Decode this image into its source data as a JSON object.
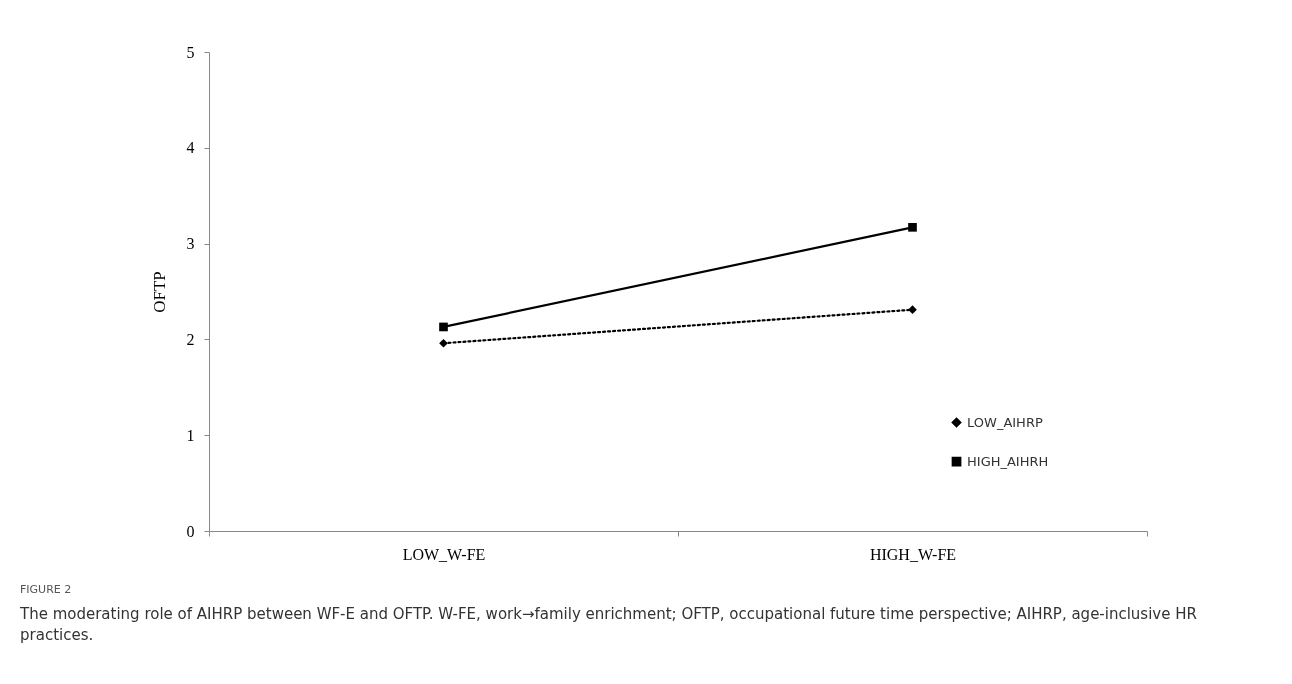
{
  "chart_data": {
    "type": "line",
    "ylabel": "OFTP",
    "categories": [
      "LOW_W-FE",
      "HIGH_W-FE"
    ],
    "series": [
      {
        "name": "LOW_AIHRP",
        "color": "#000000",
        "values": [
          1.96,
          2.31
        ],
        "line_style": "dotted",
        "marker": "diamond"
      },
      {
        "name": "HIGH_AIHRH",
        "color": "#000000",
        "values": [
          2.13,
          3.17
        ],
        "line_style": "solid",
        "marker": "square"
      }
    ],
    "ylim": [
      0,
      5
    ],
    "yticks": [
      0,
      1,
      2,
      3,
      4,
      5
    ],
    "grid": false,
    "legend": "right",
    "annotations": [
      "FIGURE 2",
      "The moderating role of AIHRP between WF-E and OFTP. W-FE, work→family enrichment; OFTP, occupational future time perspective; AIHRP, age-inclusive HR practices."
    ]
  }
}
